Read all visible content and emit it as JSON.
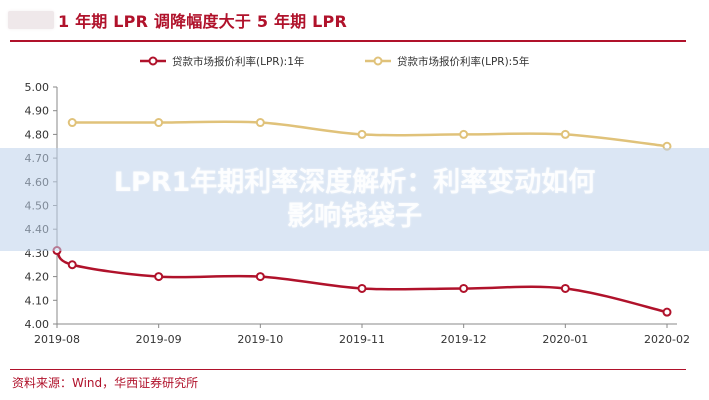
{
  "header": {
    "title": "1 年期 LPR 调降幅度大于 5 年期 LPR"
  },
  "footer": {
    "source": "资料来源：Wind，华西证券研究所"
  },
  "overlay": {
    "line1": "LPR1年期利率深度解析：利率变动如何",
    "line2": "影响钱袋子"
  },
  "chart_data": {
    "type": "line",
    "categories": [
      "2019-08",
      "2019-09",
      "2019-10",
      "2019-11",
      "2019-12",
      "2020-01",
      "2020-02"
    ],
    "series": [
      {
        "name": "贷款市场报价利率(LPR):1年",
        "color": "#b0122b",
        "x": [
          0,
          0.15,
          1,
          2,
          3,
          4,
          5,
          6
        ],
        "values": [
          4.31,
          4.25,
          4.2,
          4.2,
          4.15,
          4.15,
          4.15,
          4.05
        ]
      },
      {
        "name": "贷款市场报价利率(LPR):5年",
        "color": "#e0c27a",
        "x": [
          0.15,
          1,
          2,
          3,
          4,
          5,
          6
        ],
        "values": [
          4.85,
          4.85,
          4.85,
          4.8,
          4.8,
          4.8,
          4.75
        ]
      }
    ],
    "yticks": [
      "4.00",
      "4.10",
      "4.20",
      "4.30",
      "4.40",
      "4.50",
      "4.60",
      "4.70",
      "4.80",
      "4.90",
      "5.00"
    ],
    "ylim": [
      4.0,
      5.0
    ],
    "grid": false,
    "legend_position": "top"
  }
}
